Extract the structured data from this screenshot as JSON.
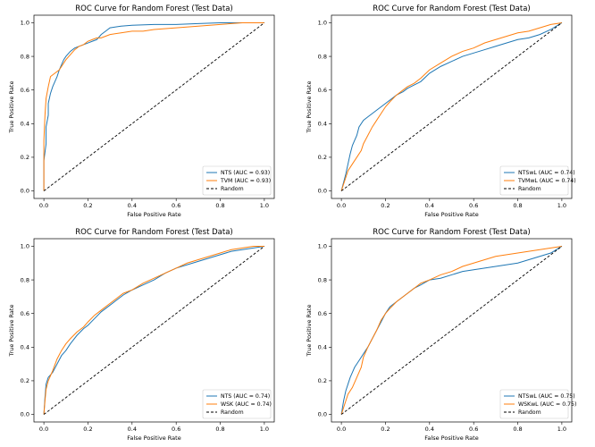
{
  "figure": {
    "colors": {
      "series1": "#1f77b4",
      "series2": "#ff7f0e",
      "random": "#000000"
    }
  },
  "chart_data": [
    {
      "type": "line",
      "title": "ROC Curve for Random Forest (Test Data)",
      "xlabel": "False Positive Rate",
      "ylabel": "True Positive Rate",
      "xlim": [
        0,
        1
      ],
      "ylim": [
        0,
        1
      ],
      "xticks": [
        "0.0",
        "0.2",
        "0.4",
        "0.6",
        "0.8",
        "1.0"
      ],
      "yticks": [
        "0.0",
        "0.2",
        "0.4",
        "0.6",
        "0.8",
        "1.0"
      ],
      "legend_position": "bottom-right",
      "grid": false,
      "series": [
        {
          "name": "NTS (AUC = 0.93)",
          "color": "#1f77b4",
          "x": [
            0,
            0,
            0.01,
            0.01,
            0.02,
            0.02,
            0.03,
            0.04,
            0.05,
            0.06,
            0.07,
            0.08,
            0.09,
            0.1,
            0.12,
            0.14,
            0.16,
            0.18,
            0.2,
            0.22,
            0.24,
            0.26,
            0.28,
            0.3,
            0.35,
            0.4,
            0.5,
            0.6,
            0.7,
            0.8,
            0.9,
            1.0
          ],
          "y": [
            0,
            0.18,
            0.28,
            0.38,
            0.45,
            0.52,
            0.58,
            0.62,
            0.65,
            0.68,
            0.72,
            0.75,
            0.78,
            0.8,
            0.83,
            0.85,
            0.86,
            0.87,
            0.88,
            0.89,
            0.9,
            0.93,
            0.95,
            0.97,
            0.98,
            0.985,
            0.99,
            0.99,
            0.995,
            1.0,
            1.0,
            1.0
          ]
        },
        {
          "name": "TVM (AUC = 0.93)",
          "color": "#ff7f0e",
          "x": [
            0,
            0,
            0.005,
            0.01,
            0.02,
            0.03,
            0.05,
            0.06,
            0.07,
            0.08,
            0.1,
            0.12,
            0.14,
            0.16,
            0.18,
            0.2,
            0.22,
            0.24,
            0.26,
            0.28,
            0.3,
            0.35,
            0.4,
            0.45,
            0.5,
            0.6,
            0.7,
            0.8,
            0.9,
            1.0
          ],
          "y": [
            0,
            0.3,
            0.45,
            0.55,
            0.62,
            0.68,
            0.7,
            0.71,
            0.72,
            0.74,
            0.78,
            0.81,
            0.84,
            0.86,
            0.87,
            0.89,
            0.9,
            0.91,
            0.91,
            0.92,
            0.93,
            0.94,
            0.95,
            0.95,
            0.96,
            0.97,
            0.98,
            0.99,
            1.0,
            1.0
          ]
        },
        {
          "name": "Random",
          "color": "#000000",
          "dashed": true,
          "x": [
            0,
            1
          ],
          "y": [
            0,
            1
          ]
        }
      ]
    },
    {
      "type": "line",
      "title": "ROC Curve for Random Forest (Test Data)",
      "xlabel": "False Positive Rate",
      "ylabel": "True Positive Rate",
      "xlim": [
        0,
        1
      ],
      "ylim": [
        0,
        1
      ],
      "xticks": [
        "0.0",
        "0.2",
        "0.4",
        "0.6",
        "0.8",
        "1.0"
      ],
      "yticks": [
        "0.0",
        "0.2",
        "0.4",
        "0.6",
        "0.8",
        "1.0"
      ],
      "legend_position": "bottom-right",
      "grid": false,
      "series": [
        {
          "name": "NTSwL (AUC = 0.74)",
          "color": "#1f77b4",
          "x": [
            0,
            0.01,
            0.02,
            0.03,
            0.04,
            0.05,
            0.06,
            0.07,
            0.08,
            0.1,
            0.12,
            0.14,
            0.16,
            0.18,
            0.2,
            0.22,
            0.25,
            0.28,
            0.3,
            0.33,
            0.36,
            0.4,
            0.45,
            0.5,
            0.55,
            0.6,
            0.65,
            0.7,
            0.75,
            0.8,
            0.85,
            0.9,
            0.95,
            1.0
          ],
          "y": [
            0,
            0.05,
            0.1,
            0.16,
            0.22,
            0.27,
            0.3,
            0.33,
            0.38,
            0.42,
            0.44,
            0.46,
            0.48,
            0.5,
            0.52,
            0.54,
            0.57,
            0.59,
            0.61,
            0.63,
            0.65,
            0.7,
            0.74,
            0.77,
            0.8,
            0.82,
            0.84,
            0.86,
            0.88,
            0.9,
            0.91,
            0.93,
            0.96,
            1.0
          ]
        },
        {
          "name": "TVMwL (AUC = 0.74)",
          "color": "#ff7f0e",
          "x": [
            0,
            0.01,
            0.02,
            0.03,
            0.05,
            0.07,
            0.09,
            0.1,
            0.12,
            0.14,
            0.16,
            0.18,
            0.2,
            0.22,
            0.25,
            0.28,
            0.3,
            0.33,
            0.36,
            0.4,
            0.45,
            0.5,
            0.55,
            0.6,
            0.65,
            0.7,
            0.75,
            0.8,
            0.85,
            0.9,
            0.95,
            1.0
          ],
          "y": [
            0,
            0.04,
            0.08,
            0.12,
            0.16,
            0.2,
            0.24,
            0.28,
            0.33,
            0.38,
            0.42,
            0.46,
            0.5,
            0.53,
            0.57,
            0.6,
            0.62,
            0.64,
            0.67,
            0.72,
            0.76,
            0.8,
            0.83,
            0.85,
            0.88,
            0.9,
            0.92,
            0.94,
            0.95,
            0.97,
            0.99,
            1.0
          ]
        },
        {
          "name": "Random",
          "color": "#000000",
          "dashed": true,
          "x": [
            0,
            1
          ],
          "y": [
            0,
            1
          ]
        }
      ]
    },
    {
      "type": "line",
      "title": "ROC Curve for Random Forest (Test Data)",
      "xlabel": "False Positive Rate",
      "ylabel": "True Positive Rate",
      "xlim": [
        0,
        1
      ],
      "ylim": [
        0,
        1
      ],
      "xticks": [
        "0.0",
        "0.2",
        "0.4",
        "0.6",
        "0.8",
        "1.0"
      ],
      "yticks": [
        "0.0",
        "0.2",
        "0.4",
        "0.6",
        "0.8",
        "1.0"
      ],
      "legend_position": "bottom-right",
      "grid": false,
      "series": [
        {
          "name": "NTS (AUC = 0.74)",
          "color": "#1f77b4",
          "x": [
            0,
            0.005,
            0.01,
            0.02,
            0.04,
            0.06,
            0.08,
            0.1,
            0.12,
            0.15,
            0.18,
            0.2,
            0.23,
            0.26,
            0.3,
            0.33,
            0.36,
            0.4,
            0.45,
            0.5,
            0.55,
            0.6,
            0.65,
            0.7,
            0.75,
            0.8,
            0.85,
            0.9,
            0.95,
            1.0
          ],
          "y": [
            0,
            0.1,
            0.18,
            0.22,
            0.25,
            0.3,
            0.35,
            0.38,
            0.42,
            0.47,
            0.51,
            0.53,
            0.57,
            0.61,
            0.65,
            0.68,
            0.71,
            0.74,
            0.77,
            0.8,
            0.84,
            0.87,
            0.89,
            0.91,
            0.93,
            0.95,
            0.97,
            0.98,
            0.99,
            1.0
          ]
        },
        {
          "name": "WSK (AUC = 0.74)",
          "color": "#ff7f0e",
          "x": [
            0,
            0.005,
            0.01,
            0.02,
            0.04,
            0.06,
            0.08,
            0.1,
            0.12,
            0.15,
            0.18,
            0.2,
            0.23,
            0.26,
            0.3,
            0.33,
            0.36,
            0.4,
            0.45,
            0.5,
            0.55,
            0.6,
            0.65,
            0.7,
            0.75,
            0.8,
            0.85,
            0.9,
            0.95,
            1.0
          ],
          "y": [
            0,
            0.08,
            0.15,
            0.2,
            0.26,
            0.33,
            0.38,
            0.42,
            0.45,
            0.49,
            0.52,
            0.55,
            0.59,
            0.62,
            0.66,
            0.69,
            0.72,
            0.74,
            0.78,
            0.81,
            0.84,
            0.87,
            0.9,
            0.92,
            0.94,
            0.96,
            0.98,
            0.99,
            1.0,
            1.0
          ]
        },
        {
          "name": "Random",
          "color": "#000000",
          "dashed": true,
          "x": [
            0,
            1
          ],
          "y": [
            0,
            1
          ]
        }
      ]
    },
    {
      "type": "line",
      "title": "ROC Curve for Random Forest (Test Data)",
      "xlabel": "False Positive Rate",
      "ylabel": "True Positive Rate",
      "xlim": [
        0,
        1
      ],
      "ylim": [
        0,
        1
      ],
      "xticks": [
        "0.0",
        "0.2",
        "0.4",
        "0.6",
        "0.8",
        "1.0"
      ],
      "yticks": [
        "0.0",
        "0.2",
        "0.4",
        "0.6",
        "0.8",
        "1.0"
      ],
      "legend_position": "bottom-right",
      "grid": false,
      "series": [
        {
          "name": "NTSwL (AUC = 0.75)",
          "color": "#1f77b4",
          "x": [
            0,
            0.01,
            0.02,
            0.03,
            0.04,
            0.05,
            0.06,
            0.08,
            0.1,
            0.12,
            0.14,
            0.16,
            0.18,
            0.2,
            0.22,
            0.25,
            0.28,
            0.3,
            0.33,
            0.36,
            0.4,
            0.45,
            0.5,
            0.55,
            0.6,
            0.65,
            0.7,
            0.75,
            0.8,
            0.85,
            0.9,
            0.95,
            1.0
          ],
          "y": [
            0,
            0.08,
            0.14,
            0.18,
            0.22,
            0.25,
            0.28,
            0.32,
            0.36,
            0.4,
            0.45,
            0.5,
            0.55,
            0.6,
            0.64,
            0.67,
            0.7,
            0.72,
            0.75,
            0.77,
            0.8,
            0.81,
            0.83,
            0.85,
            0.86,
            0.87,
            0.88,
            0.89,
            0.9,
            0.92,
            0.94,
            0.96,
            1.0
          ]
        },
        {
          "name": "WSKwL (AUC = 0.75)",
          "color": "#ff7f0e",
          "x": [
            0,
            0.01,
            0.02,
            0.03,
            0.05,
            0.07,
            0.09,
            0.1,
            0.12,
            0.14,
            0.16,
            0.18,
            0.2,
            0.22,
            0.25,
            0.28,
            0.3,
            0.33,
            0.36,
            0.4,
            0.45,
            0.5,
            0.55,
            0.6,
            0.65,
            0.7,
            0.75,
            0.8,
            0.85,
            0.9,
            0.95,
            1.0
          ],
          "y": [
            0,
            0.04,
            0.08,
            0.12,
            0.16,
            0.22,
            0.28,
            0.34,
            0.4,
            0.45,
            0.5,
            0.56,
            0.6,
            0.63,
            0.67,
            0.7,
            0.72,
            0.75,
            0.78,
            0.8,
            0.83,
            0.85,
            0.88,
            0.9,
            0.92,
            0.94,
            0.95,
            0.96,
            0.97,
            0.98,
            0.99,
            1.0
          ]
        },
        {
          "name": "Random",
          "color": "#000000",
          "dashed": true,
          "x": [
            0,
            1
          ],
          "y": [
            0,
            1
          ]
        }
      ]
    }
  ]
}
